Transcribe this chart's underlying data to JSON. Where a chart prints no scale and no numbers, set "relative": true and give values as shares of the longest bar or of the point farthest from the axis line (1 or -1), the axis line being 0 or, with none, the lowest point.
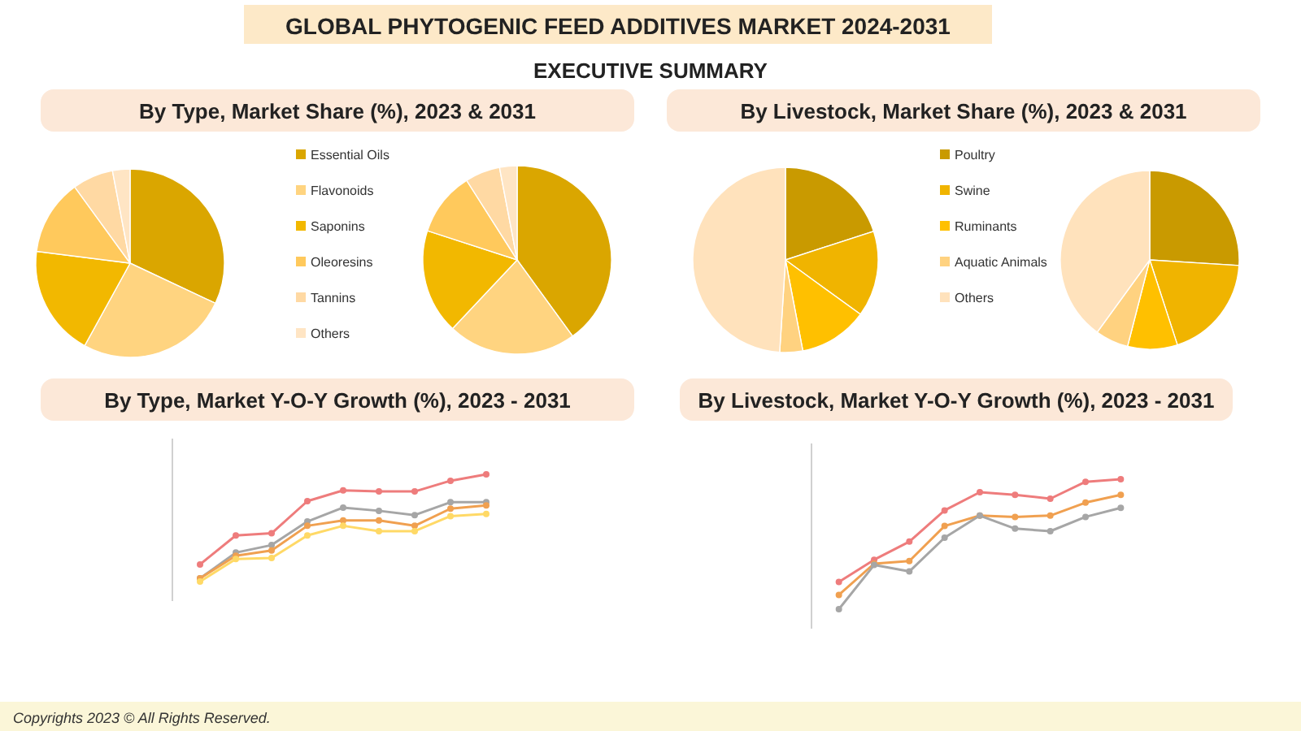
{
  "chart_data": [
    {
      "type": "other",
      "title": "GLOBAL PHYTOGENIC FEED ADDITIVES MARKET 2024-2031",
      "subtitle": "EXECUTIVE SUMMARY",
      "annotations": [
        "Copyrights 2023 © All Rights Reserved."
      ]
    },
    {
      "type": "pie",
      "title": "By Type, Market Share (%), 2023 & 2031",
      "categories": [
        "Essential Oils",
        "Flavonoids",
        "Saponins",
        "Oleoresins",
        "Tannins",
        "Others"
      ],
      "values": [
        32,
        26,
        19,
        13,
        7,
        3
      ],
      "colors": [
        "#daa600",
        "#ffd480",
        "#f2b800",
        "#ffc95c",
        "#ffd9a3",
        "#ffe5c4"
      ],
      "legend": "right"
    },
    {
      "type": "pie",
      "categories": [
        null,
        null,
        null,
        null,
        null,
        null
      ],
      "values": [
        40,
        22,
        18,
        11,
        6,
        3
      ],
      "colors": [
        "#daa600",
        "#ffd480",
        "#f2b800",
        "#ffc95c",
        "#ffd9a3",
        "#ffe5c4"
      ]
    },
    {
      "type": "pie",
      "title": "By Livestock, Market Share (%), 2023 & 2031",
      "categories": [
        "Poultry",
        "Swine",
        "Ruminants",
        "Aquatic Animals",
        "Others"
      ],
      "values": [
        20,
        15,
        12,
        4,
        49
      ],
      "colors": [
        "#c99a00",
        "#f0b400",
        "#ffc000",
        "#ffd280",
        "#ffe2bc"
      ],
      "legend": "right"
    },
    {
      "type": "pie",
      "categories": [
        null,
        null,
        null,
        null,
        null
      ],
      "values": [
        26,
        19,
        9,
        6,
        40
      ],
      "colors": [
        "#c99a00",
        "#f0b400",
        "#ffc000",
        "#ffd280",
        "#ffe2bc"
      ]
    },
    {
      "type": "line",
      "title": "By Type, Market Y-O-Y Growth (%), 2023 - 2031",
      "relative": true,
      "marker": "circle",
      "categories": [
        null,
        null,
        null,
        null,
        null,
        null,
        null,
        null,
        null
      ],
      "series": [
        {
          "color": "#ee7c7c",
          "values": [
            0.16,
            0.43,
            0.45,
            0.75,
            0.85,
            0.84,
            0.84,
            0.94,
            1
          ]
        },
        {
          "color": "#a6a6a6",
          "values": [
            0.03,
            0.27,
            0.34,
            0.56,
            0.69,
            0.66,
            0.62,
            0.74,
            0.74
          ]
        },
        {
          "color": "#f0a050",
          "values": [
            0.03,
            0.24,
            0.29,
            0.52,
            0.57,
            0.57,
            0.52,
            0.68,
            0.71
          ]
        },
        {
          "color": "#ffd966",
          "values": [
            0,
            0.21,
            0.22,
            0.43,
            0.52,
            0.47,
            0.47,
            0.61,
            0.63
          ]
        }
      ]
    },
    {
      "type": "line",
      "title": "By Livestock, Market Y-O-Y Growth (%), 2023 - 2031",
      "relative": true,
      "marker": "circle",
      "categories": [
        null,
        null,
        null,
        null,
        null,
        null,
        null,
        null,
        null
      ],
      "series": [
        {
          "color": "#ee7c7c",
          "values": [
            0.21,
            0.38,
            0.52,
            0.76,
            0.9,
            0.88,
            0.85,
            0.98,
            1
          ]
        },
        {
          "color": "#f0a050",
          "values": [
            0.11,
            0.35,
            0.37,
            0.64,
            0.72,
            0.71,
            0.72,
            0.82,
            0.88
          ]
        },
        {
          "color": "#a6a6a6",
          "values": [
            0,
            0.34,
            0.29,
            0.55,
            0.72,
            0.62,
            0.6,
            0.71,
            0.78
          ]
        }
      ]
    }
  ]
}
